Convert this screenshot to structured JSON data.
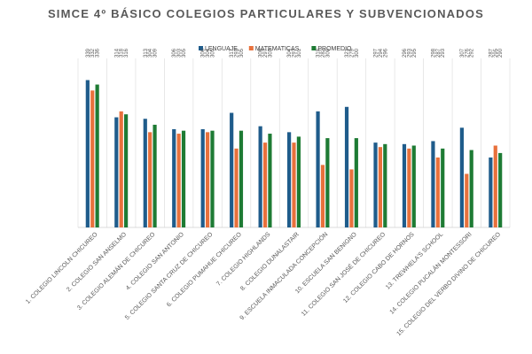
{
  "chart_data": {
    "type": "bar",
    "title": "SIMCE 4º BÁSICO COLEGIOS PARTICULARES Y SUBVENCIONADOS",
    "xlabel": "",
    "ylabel": "",
    "legend_position": "top-center",
    "grid": true,
    "ylim": [
      240,
      350
    ],
    "categories": [
      "1. COLEGIO LINCOLN CHICUREO",
      "2. COLEGIO SAN ANSELMO",
      "3. COLEGIO ALEMÁN DE CHICUREO",
      "4. COLEGIO SAN ANTONIO",
      "5. COLEGIO SANTA CRUZ DE CHICUREO",
      "6. COLEGIO PUMAHUE CHICUREO",
      "7. COLEGIO HIGHLANDS",
      "8. COLEGIO DUNALASTAIR",
      "9. ESCUELA INMACULADA CONCEPCIÓN",
      "10. ESCUELA SAN BENIGNO",
      "11. COLEGIO SAN JOSÉ DE CHICUREO",
      "12. COLEGIO CABO DE HORNOS",
      "13. TREWHELA'S SCHOOL",
      "14. COLEGIO PUCALÁN MONTESSORI",
      "15. COLEGIO DEL VERBO DIVINO DE CHICUREO"
    ],
    "series": [
      {
        "name": "LENGUAJE",
        "color": "#1f5c8b",
        "values": [
          339,
          314,
          313,
          306,
          306,
          317,
          308,
          304,
          318,
          321,
          297,
          296,
          298,
          307,
          287
        ],
        "labels": [
          "339",
          "314",
          "313",
          "306",
          "306",
          "317",
          "308",
          "304",
          "318",
          "321",
          "297",
          "296",
          "298",
          "307",
          "287"
        ]
      },
      {
        "name": "MATEMATICAS",
        "color": "#e8713c",
        "values": [
          332,
          318,
          304,
          303,
          304,
          293,
          297,
          297,
          282,
          279,
          294,
          293,
          287,
          276,
          295
        ],
        "labels": [
          "332",
          "318",
          "304",
          "303",
          "304",
          "293",
          "297",
          "297",
          "282",
          "279",
          "294",
          "293",
          "287",
          "276",
          "295"
        ]
      },
      {
        "name": "PROMEDIO",
        "color": "#1e7b34",
        "values": [
          336,
          316,
          309,
          305,
          305,
          305,
          303,
          301,
          300,
          300,
          296,
          295,
          293,
          292,
          290
        ],
        "labels": [
          "336",
          "316",
          "309",
          "305",
          "305",
          "305",
          "303",
          "301",
          "300",
          "300",
          "296",
          "295",
          "293",
          "292",
          "290"
        ]
      }
    ]
  }
}
